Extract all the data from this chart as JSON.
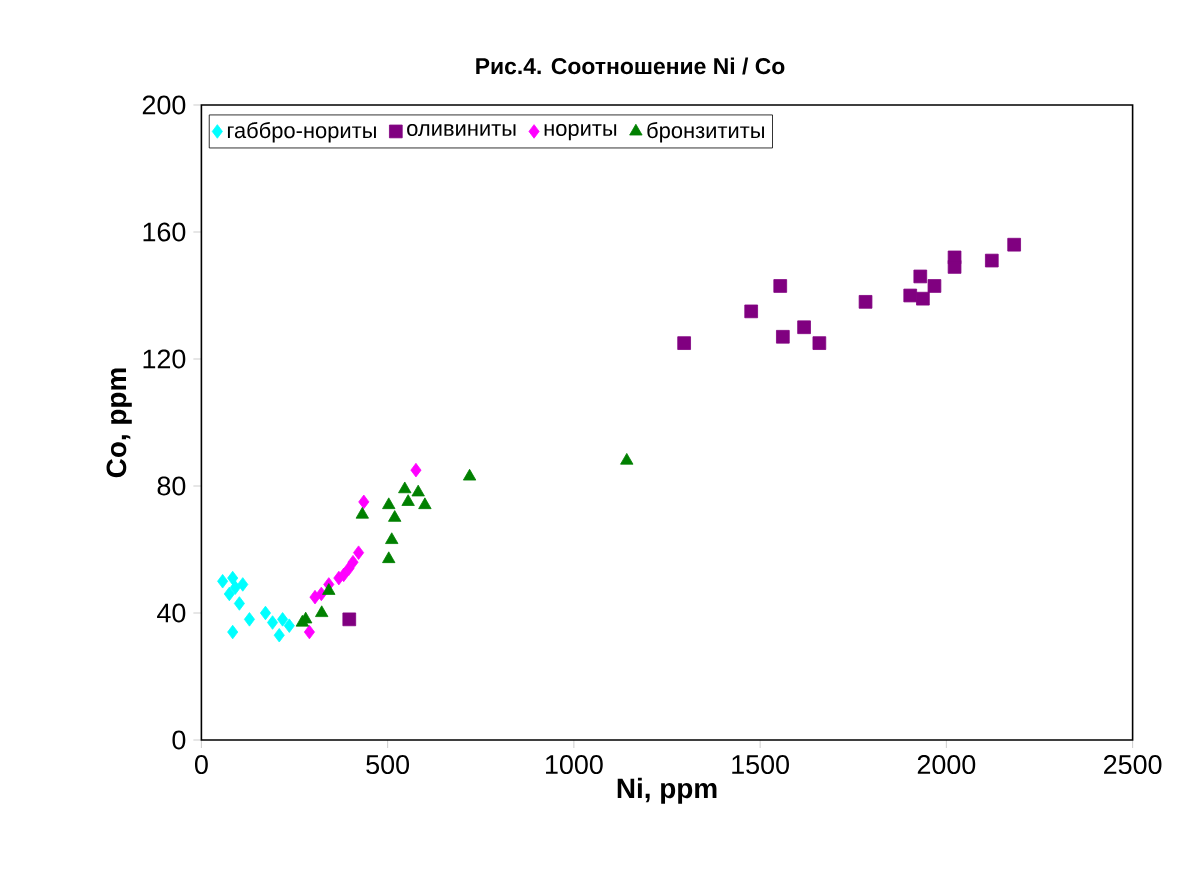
{
  "chart_data": {
    "type": "scatter",
    "title": "Рис.4. Соотношение Ni / Co",
    "xlabel": "Ni, ppm",
    "ylabel": "Co, ppm",
    "xlim": [
      0,
      2500
    ],
    "xticks": [
      0,
      500,
      1000,
      1500,
      2000,
      2500
    ],
    "ylim": [
      0,
      200
    ],
    "yticks": [
      0,
      40,
      80,
      120,
      160,
      200
    ],
    "legend": "top left",
    "series": [
      {
        "name": "габбро-нориты",
        "color": "#00ffff",
        "marker": "diamond",
        "x": [
          57,
          84,
          75,
          91,
          111,
          102,
          129,
          84,
          172,
          191,
          218,
          209,
          236
        ],
        "values": [
          50,
          51,
          46,
          48,
          49,
          43,
          38,
          34,
          40,
          37,
          38,
          33,
          36
        ]
      },
      {
        "name": "оливиниты",
        "color": "#800080",
        "marker": "square",
        "x": [
          1296,
          1476,
          1554,
          1561,
          1618,
          1659,
          1783,
          1903,
          1930,
          1937,
          1968,
          2022,
          2022,
          2122,
          2182,
          397
        ],
        "values": [
          125,
          135,
          143,
          127,
          130,
          125,
          138,
          140,
          146,
          139,
          143,
          152,
          149,
          151,
          156,
          38
        ]
      },
      {
        "name": "нориты",
        "color": "#ff00ff",
        "marker": "diamond",
        "x": [
          576,
          436,
          422,
          407,
          396,
          382,
          369,
          342,
          322,
          305,
          290
        ],
        "values": [
          85,
          75,
          59,
          56,
          54,
          52,
          51,
          49,
          46,
          45,
          34
        ]
      },
      {
        "name": "бронзититы",
        "color": "#008000",
        "marker": "triangle",
        "x": [
          720,
          546,
          582,
          600,
          503,
          519,
          511,
          503,
          432,
          555,
          342,
          323,
          280,
          271,
          1142
        ],
        "values": [
          83,
          79,
          78,
          74,
          74,
          70,
          63,
          57,
          71,
          75,
          47,
          40,
          38,
          37,
          88
        ]
      }
    ]
  }
}
